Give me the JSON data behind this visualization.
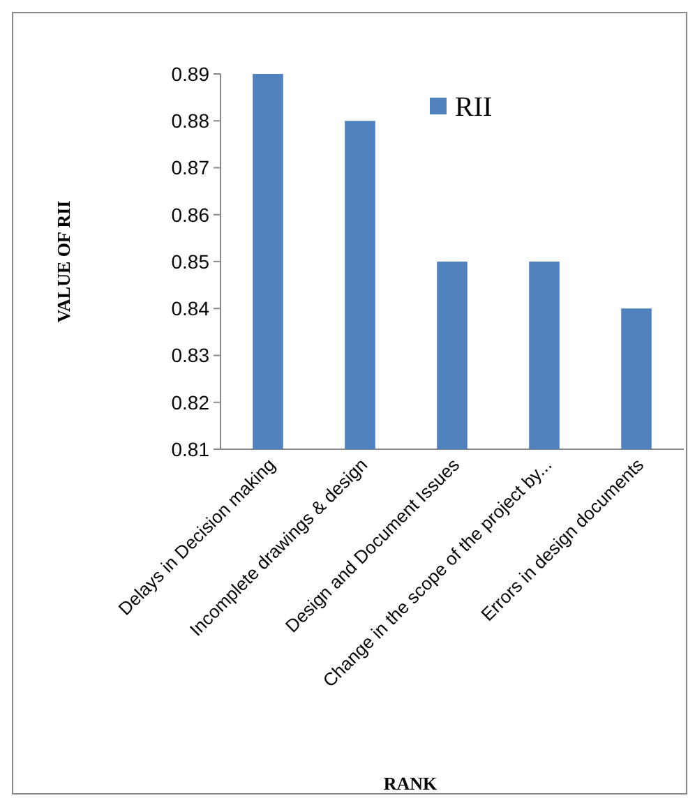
{
  "chart_data": {
    "type": "bar",
    "xlabel": "RANK",
    "ylabel": "VALUE OF RII",
    "categories": [
      "Delays in Decision making",
      "Incomplete  drawings & design",
      "Design and Document Issues",
      "Change in the scope of the project by...",
      "Errors in design documents"
    ],
    "series": [
      {
        "name": "RII",
        "color": "#4f81bd",
        "values": [
          0.89,
          0.88,
          0.85,
          0.85,
          0.84
        ]
      }
    ],
    "ylim": [
      0.81,
      0.89
    ],
    "yticks": [
      0.81,
      0.82,
      0.83,
      0.84,
      0.85,
      0.86,
      0.87,
      0.88,
      0.89
    ],
    "grid": false,
    "legend": "top right"
  }
}
